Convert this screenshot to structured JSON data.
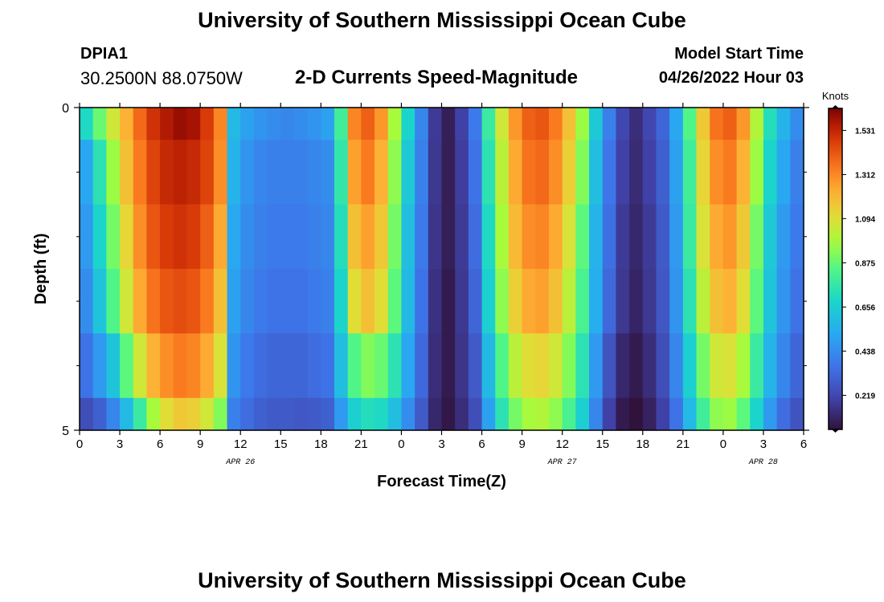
{
  "page": {
    "title": "University of Southern Mississippi Ocean Cube",
    "station": "DPIA1",
    "coordinates": "30.2500N  88.0750W",
    "subtitle": "2-D Currents Speed-Magnitude",
    "model_start_label": "Model Start Time",
    "model_start_value": "04/26/2022 Hour 03",
    "bottom_title": "University of Southern Mississippi Ocean Cube"
  },
  "chart_data": {
    "type": "heatmap",
    "xlabel": "Forecast Time(Z)",
    "ylabel": "Depth (ft)",
    "x_range": [
      0,
      54
    ],
    "y_range": [
      0,
      5
    ],
    "x_ticks": [
      {
        "value": 0,
        "label": "0"
      },
      {
        "value": 3,
        "label": "3"
      },
      {
        "value": 6,
        "label": "6"
      },
      {
        "value": 9,
        "label": "9"
      },
      {
        "value": 12,
        "label": "12"
      },
      {
        "value": 15,
        "label": "15"
      },
      {
        "value": 18,
        "label": "18"
      },
      {
        "value": 21,
        "label": "21"
      },
      {
        "value": 24,
        "label": "0"
      },
      {
        "value": 27,
        "label": "3"
      },
      {
        "value": 30,
        "label": "6"
      },
      {
        "value": 33,
        "label": "9"
      },
      {
        "value": 36,
        "label": "12"
      },
      {
        "value": 39,
        "label": "15"
      },
      {
        "value": 42,
        "label": "18"
      },
      {
        "value": 45,
        "label": "21"
      },
      {
        "value": 48,
        "label": "0"
      },
      {
        "value": 51,
        "label": "3"
      },
      {
        "value": 54,
        "label": "6"
      }
    ],
    "date_labels": [
      {
        "value": 12,
        "label": "APR 26"
      },
      {
        "value": 36,
        "label": "APR 27"
      },
      {
        "value": 51,
        "label": "APR 28"
      }
    ],
    "y_ticks": [
      {
        "value": 0,
        "label": "0"
      },
      {
        "value": 5,
        "label": "5"
      }
    ],
    "y_minor_ticks": [
      1,
      2,
      3,
      4
    ],
    "colorbar": {
      "title": "Knots",
      "min": 0.05,
      "max": 1.64,
      "ticks": [
        0.219,
        0.438,
        0.656,
        0.875,
        1.094,
        1.312,
        1.531
      ],
      "tick_labels": [
        "0.219",
        "0.438",
        "0.656",
        "0.875",
        "1.094",
        "1.312",
        "1.531"
      ]
    },
    "x_times": [
      0,
      1,
      2,
      3,
      4,
      5,
      6,
      7,
      8,
      9,
      10,
      11,
      12,
      13,
      14,
      15,
      16,
      17,
      18,
      19,
      20,
      21,
      22,
      23,
      24,
      25,
      26,
      27,
      28,
      29,
      30,
      31,
      32,
      33,
      34,
      35,
      36,
      37,
      38,
      39,
      40,
      41,
      42,
      43,
      44,
      45,
      46,
      47,
      48,
      49,
      50,
      51,
      52,
      53
    ],
    "depth_layers": [
      "0-0.5",
      "0.5-1.5",
      "1.5-2.5",
      "2.5-3.5",
      "3.5-4.5",
      "4.5-5"
    ],
    "speed_knots": [
      [
        0.7,
        0.88,
        1.06,
        1.22,
        1.38,
        1.5,
        1.56,
        1.6,
        1.58,
        1.48,
        1.32,
        0.58,
        0.5,
        0.46,
        0.44,
        0.42,
        0.44,
        0.46,
        0.5,
        0.8,
        1.32,
        1.4,
        1.28,
        0.98,
        0.68,
        0.42,
        0.18,
        0.09,
        0.2,
        0.38,
        0.78,
        1.06,
        1.28,
        1.4,
        1.42,
        1.34,
        1.18,
        0.96,
        0.64,
        0.4,
        0.22,
        0.14,
        0.22,
        0.32,
        0.52,
        0.84,
        1.16,
        1.36,
        1.4,
        1.28,
        1.0,
        0.72,
        0.56,
        0.44
      ],
      [
        0.52,
        0.74,
        0.96,
        1.18,
        1.34,
        1.46,
        1.52,
        1.54,
        1.52,
        1.46,
        1.3,
        0.56,
        0.46,
        0.42,
        0.4,
        0.4,
        0.4,
        0.42,
        0.44,
        0.76,
        1.26,
        1.34,
        1.22,
        0.94,
        0.64,
        0.4,
        0.17,
        0.09,
        0.19,
        0.36,
        0.74,
        1.02,
        1.24,
        1.36,
        1.38,
        1.3,
        1.14,
        0.92,
        0.6,
        0.37,
        0.2,
        0.13,
        0.2,
        0.3,
        0.5,
        0.8,
        1.12,
        1.3,
        1.34,
        1.22,
        0.96,
        0.68,
        0.52,
        0.4
      ],
      [
        0.48,
        0.68,
        0.9,
        1.12,
        1.3,
        1.42,
        1.48,
        1.5,
        1.48,
        1.4,
        1.24,
        0.52,
        0.44,
        0.4,
        0.38,
        0.38,
        0.38,
        0.4,
        0.42,
        0.72,
        1.18,
        1.26,
        1.16,
        0.9,
        0.6,
        0.38,
        0.16,
        0.09,
        0.18,
        0.34,
        0.7,
        0.98,
        1.2,
        1.3,
        1.32,
        1.24,
        1.08,
        0.86,
        0.56,
        0.35,
        0.18,
        0.12,
        0.18,
        0.28,
        0.48,
        0.78,
        1.08,
        1.24,
        1.28,
        1.16,
        0.9,
        0.64,
        0.48,
        0.38
      ],
      [
        0.44,
        0.62,
        0.84,
        1.06,
        1.24,
        1.36,
        1.42,
        1.44,
        1.42,
        1.34,
        1.18,
        0.5,
        0.42,
        0.38,
        0.36,
        0.36,
        0.36,
        0.38,
        0.4,
        0.68,
        1.1,
        1.18,
        1.1,
        0.86,
        0.58,
        0.36,
        0.15,
        0.08,
        0.17,
        0.32,
        0.66,
        0.94,
        1.14,
        1.24,
        1.26,
        1.18,
        1.02,
        0.82,
        0.54,
        0.33,
        0.17,
        0.11,
        0.17,
        0.27,
        0.46,
        0.74,
        1.02,
        1.18,
        1.22,
        1.1,
        0.86,
        0.62,
        0.46,
        0.36
      ],
      [
        0.36,
        0.48,
        0.62,
        0.86,
        1.06,
        1.22,
        1.3,
        1.34,
        1.32,
        1.24,
        1.08,
        0.46,
        0.38,
        0.34,
        0.32,
        0.32,
        0.32,
        0.34,
        0.36,
        0.6,
        0.84,
        0.92,
        0.88,
        0.74,
        0.52,
        0.33,
        0.14,
        0.08,
        0.16,
        0.28,
        0.58,
        0.84,
        1.02,
        1.1,
        1.12,
        1.06,
        0.92,
        0.74,
        0.48,
        0.26,
        0.12,
        0.08,
        0.14,
        0.24,
        0.42,
        0.66,
        0.9,
        1.06,
        1.08,
        0.98,
        0.78,
        0.56,
        0.42,
        0.32
      ],
      [
        0.24,
        0.3,
        0.42,
        0.58,
        0.78,
        0.98,
        1.1,
        1.16,
        1.14,
        1.06,
        0.92,
        0.4,
        0.34,
        0.3,
        0.28,
        0.28,
        0.27,
        0.28,
        0.3,
        0.48,
        0.66,
        0.72,
        0.7,
        0.6,
        0.44,
        0.28,
        0.12,
        0.07,
        0.14,
        0.24,
        0.5,
        0.74,
        0.9,
        0.98,
        1.0,
        0.94,
        0.82,
        0.66,
        0.42,
        0.2,
        0.08,
        0.05,
        0.1,
        0.2,
        0.36,
        0.58,
        0.8,
        0.94,
        0.96,
        0.86,
        0.68,
        0.48,
        0.34,
        0.26
      ]
    ]
  }
}
